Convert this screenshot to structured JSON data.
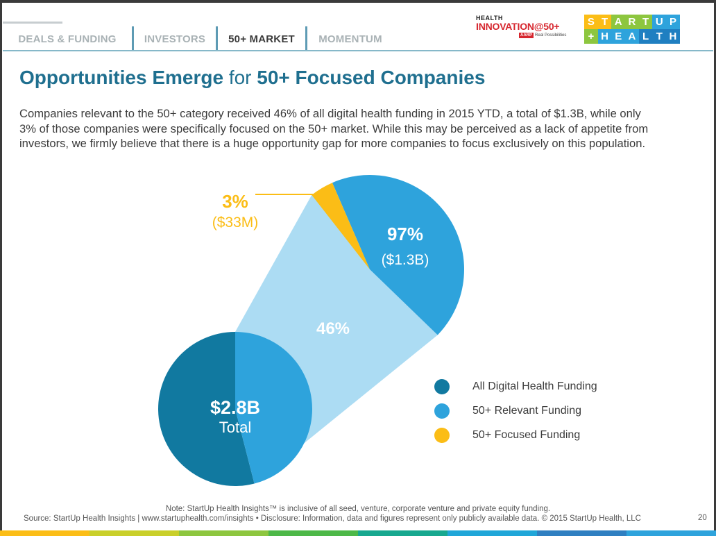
{
  "tabs": [
    {
      "label": "DEALS & FUNDING",
      "active": false
    },
    {
      "label": "INVESTORS",
      "active": false
    },
    {
      "label": "50+ MARKET",
      "active": true
    },
    {
      "label": "MOMENTUM",
      "active": false
    }
  ],
  "logos": {
    "health_innovation": {
      "line1": "HEALTH",
      "line2": "INNOVATION@50+",
      "badge": "AARP",
      "tagline": "Real Possibilities"
    },
    "startup_health": {
      "row1": [
        "S",
        "T",
        "A",
        "R",
        "T",
        "U",
        "P"
      ],
      "row2": [
        "+",
        "H",
        "E",
        "A",
        "L",
        "T",
        "H"
      ]
    }
  },
  "title": {
    "part1": "Opportunities Emerge",
    "part2": " for ",
    "part3": "50+ Focused Companies"
  },
  "intro": "Companies relevant to the 50+ category received 46% of all digital health funding in 2015 YTD, a total of $1.3B, while only\n3% of those companies were specifically focused on the 50+ market. While this may be perceived as a lack of appetite from\ninvestors, we firmly believe that there is a huge opportunity gap for more companies to focus exclusively on this population.",
  "chart_data": {
    "type": "pie",
    "charts": [
      {
        "name": "All Digital Health Funding",
        "total_label": "$2.8B",
        "total_sublabel": "Total",
        "slices": [
          {
            "label": "All Digital Health Funding",
            "percent": 54,
            "color": "#1179a0"
          },
          {
            "label": "50+ Relevant Funding",
            "percent": 46,
            "color": "#2ea3dc",
            "data_label": "46%"
          }
        ]
      },
      {
        "name": "50+ Relevant Funding",
        "slices": [
          {
            "label": "50+ Relevant Funding",
            "percent": 97,
            "value_label": "($1.3B)",
            "data_label": "97%",
            "color": "#2ea3dc"
          },
          {
            "label": "50+ Focused Funding",
            "percent": 3,
            "value_label": "($33M)",
            "data_label": "3%",
            "color": "#fbbd16"
          }
        ]
      }
    ],
    "legend": [
      {
        "label": "All Digital Health Funding",
        "color": "#1179a0"
      },
      {
        "label": "50+ Relevant Funding",
        "color": "#2ea3dc"
      },
      {
        "label": "50+ Focused Funding",
        "color": "#fbbd16"
      }
    ],
    "legend_position": "right"
  },
  "footer": {
    "note": "Note: StartUp Health Insights™ is inclusive of all seed, venture, corporate venture and private equity funding.",
    "source": "Source: StartUp Health Insights | www.startuphealth.com/insights  •  Disclosure: Information, data and figures represent only publicly available data. © 2015 StartUp Health, LLC",
    "page_number": "20"
  },
  "colors": {
    "title": "#1f6f8f",
    "dark_blue": "#1179a0",
    "mid_blue": "#2ea3dc",
    "light_blue": "#acdcf3",
    "yellow": "#fbbd16",
    "bottom_bar": [
      "#fbbd16",
      "#c9cf2a",
      "#8dc63f",
      "#4db848",
      "#17a88f",
      "#1fa6d8",
      "#2f7fc1",
      "#2ea3dc"
    ]
  }
}
